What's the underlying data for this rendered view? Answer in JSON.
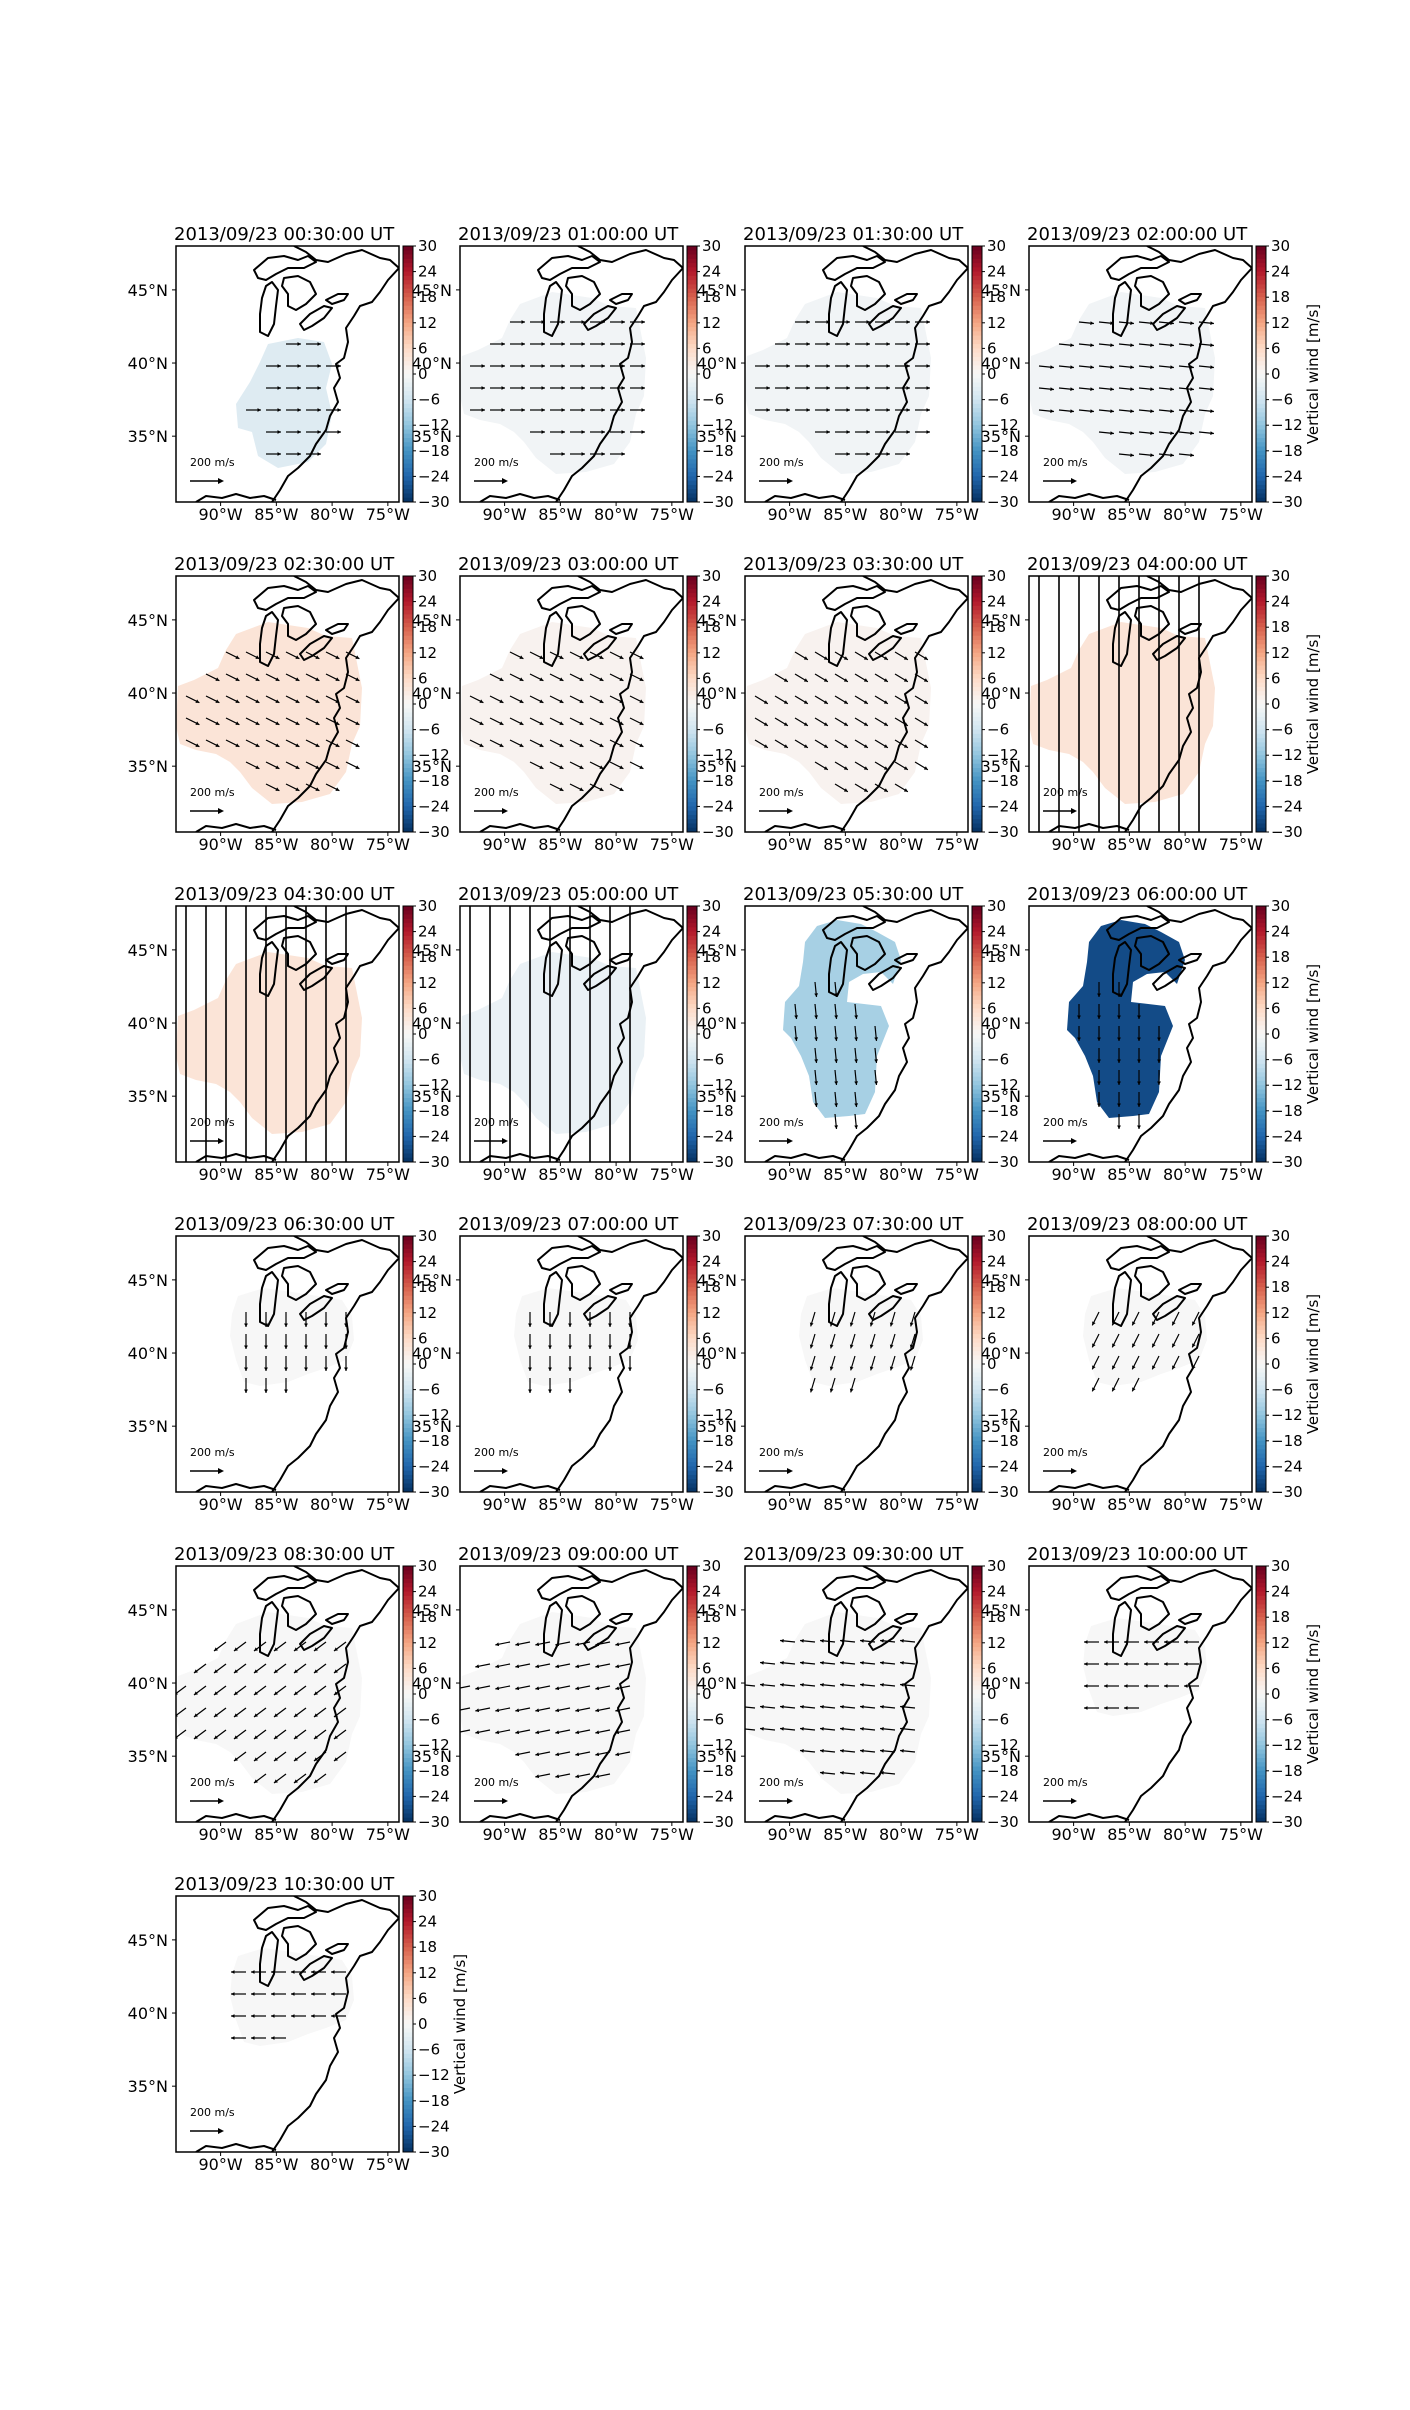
{
  "figure": {
    "colorbar_label": "Vertical wind [m/s]",
    "arrow_scale_label": "200 m/s"
  },
  "chart_data": {
    "type": "heatmap",
    "description_kind": "small multiples of map panels with wind vectors over the Great Lakes / eastern US",
    "colormap": [
      "#053061",
      "#2166ac",
      "#4393c3",
      "#92c5de",
      "#d1e5f0",
      "#f7f7f7",
      "#fddbc7",
      "#f4a582",
      "#d6604d",
      "#b2182b",
      "#67001f"
    ],
    "colorbar": {
      "label": "Vertical wind [m/s]",
      "min": -30,
      "max": 30,
      "ticks": [
        30,
        24,
        18,
        12,
        6,
        0,
        -6,
        -12,
        -18,
        -24,
        -30
      ]
    },
    "map_axes": {
      "lon_ticks": [
        "90°W",
        "85°W",
        "80°W",
        "75°W"
      ],
      "lat_ticks": [
        "45°N",
        "40°N",
        "35°N"
      ],
      "lon_range": [
        -94,
        -74
      ],
      "lat_range": [
        30.5,
        48
      ]
    },
    "arrow_scale": {
      "value": 200,
      "unit": "m/s"
    },
    "panels": [
      {
        "title": "2013/09/23 00:30:00 UT",
        "vertical_wind": -4,
        "shape": "south",
        "wind": {
          "u": 1,
          "v": 0
        }
      },
      {
        "title": "2013/09/23 01:00:00 UT",
        "vertical_wind": -1,
        "shape": "full",
        "wind": {
          "u": 1,
          "v": 0
        }
      },
      {
        "title": "2013/09/23 01:30:00 UT",
        "vertical_wind": -1,
        "shape": "full",
        "wind": {
          "u": 1,
          "v": 0
        }
      },
      {
        "title": "2013/09/23 02:00:00 UT",
        "vertical_wind": -1,
        "shape": "full",
        "wind": {
          "u": 1,
          "v": -0.1
        }
      },
      {
        "title": "2013/09/23 02:30:00 UT",
        "vertical_wind": 4,
        "shape": "full",
        "wind": {
          "u": 1,
          "v": -0.5
        }
      },
      {
        "title": "2013/09/23 03:00:00 UT",
        "vertical_wind": 1,
        "shape": "full",
        "wind": {
          "u": 1,
          "v": -0.5
        }
      },
      {
        "title": "2013/09/23 03:30:00 UT",
        "vertical_wind": 1,
        "shape": "full",
        "wind": {
          "u": 1,
          "v": -0.6
        }
      },
      {
        "title": "2013/09/23 04:00:00 UT",
        "vertical_wind": 4,
        "shape": "full",
        "wind": {
          "u": 0,
          "v": -12
        }
      },
      {
        "title": "2013/09/23 04:30:00 UT",
        "vertical_wind": 4,
        "shape": "full",
        "wind": {
          "u": 0,
          "v": -12
        }
      },
      {
        "title": "2013/09/23 05:00:00 UT",
        "vertical_wind": -2,
        "shape": "full",
        "wind": {
          "u": 0,
          "v": -12
        }
      },
      {
        "title": "2013/09/23 05:30:00 UT",
        "vertical_wind": -10,
        "shape": "lobe",
        "wind": {
          "u": 0.1,
          "v": -1
        }
      },
      {
        "title": "2013/09/23 06:00:00 UT",
        "vertical_wind": -27,
        "shape": "lobe",
        "wind": {
          "u": 0,
          "v": -1
        }
      },
      {
        "title": "2013/09/23 06:30:00 UT",
        "vertical_wind": 0,
        "shape": "central",
        "wind": {
          "u": 0,
          "v": -1
        }
      },
      {
        "title": "2013/09/23 07:00:00 UT",
        "vertical_wind": 0,
        "shape": "central",
        "wind": {
          "u": 0,
          "v": -1
        }
      },
      {
        "title": "2013/09/23 07:30:00 UT",
        "vertical_wind": 0,
        "shape": "central",
        "wind": {
          "u": -0.3,
          "v": -1
        }
      },
      {
        "title": "2013/09/23 08:00:00 UT",
        "vertical_wind": 0,
        "shape": "central",
        "wind": {
          "u": -0.5,
          "v": -1
        }
      },
      {
        "title": "2013/09/23 08:30:00 UT",
        "vertical_wind": 0,
        "shape": "full",
        "wind": {
          "u": -0.8,
          "v": -0.6
        }
      },
      {
        "title": "2013/09/23 09:00:00 UT",
        "vertical_wind": 0,
        "shape": "full",
        "wind": {
          "u": -1,
          "v": -0.2
        }
      },
      {
        "title": "2013/09/23 09:30:00 UT",
        "vertical_wind": 0,
        "shape": "full",
        "wind": {
          "u": -1,
          "v": 0.1
        }
      },
      {
        "title": "2013/09/23 10:00:00 UT",
        "vertical_wind": 0,
        "shape": "central",
        "wind": {
          "u": -1,
          "v": 0
        }
      },
      {
        "title": "2013/09/23 10:30:00 UT",
        "vertical_wind": 0,
        "shape": "central",
        "wind": {
          "u": -1,
          "v": 0
        }
      }
    ]
  }
}
